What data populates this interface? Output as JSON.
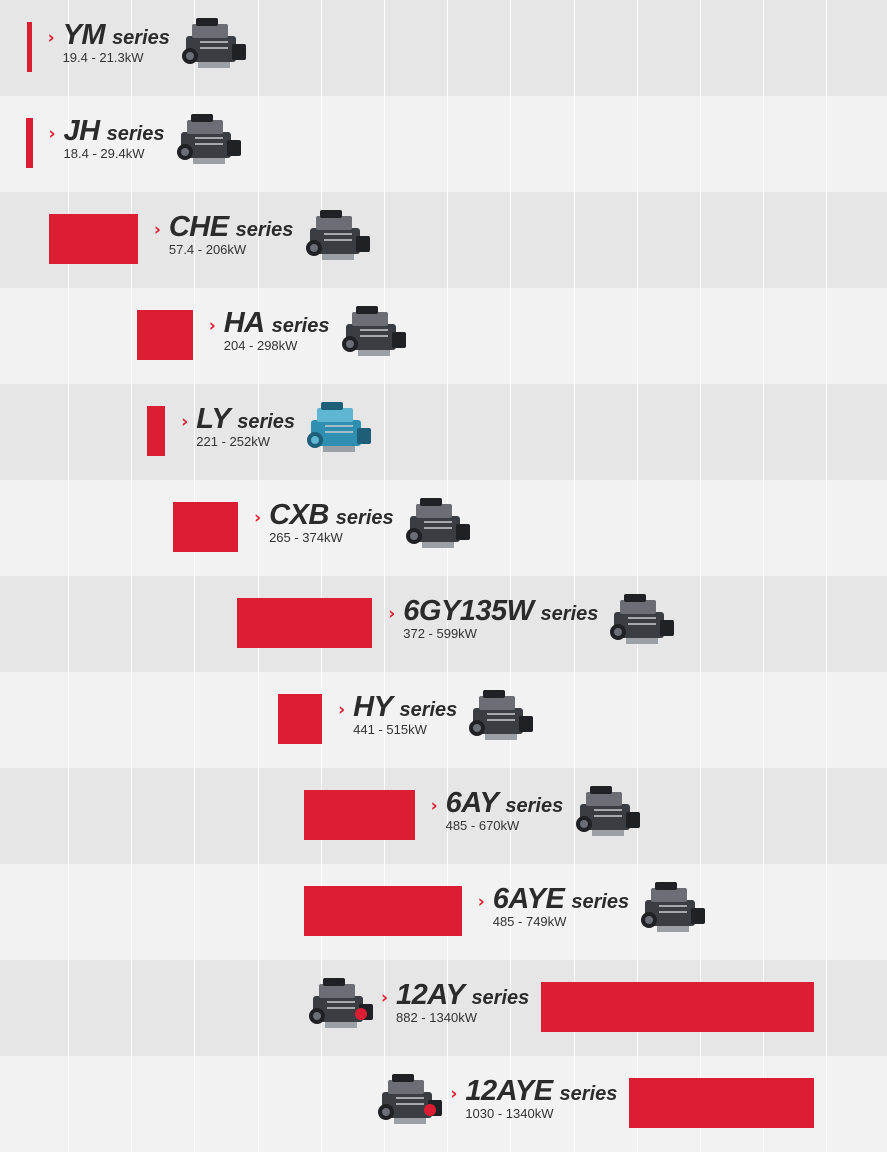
{
  "chart_data": {
    "type": "bar",
    "orientation": "horizontal-range",
    "unit": "kW",
    "series_suffix": "series",
    "categories": [
      "YM",
      "JH",
      "CHE",
      "HA",
      "LY",
      "CXB",
      "6GY135W",
      "HY",
      "6AY",
      "6AYE",
      "12AY",
      "12AYE"
    ],
    "ranges": [
      {
        "name": "YM",
        "range_label": "19.4 - 21.3kW",
        "min": 19.4,
        "max": 21.3
      },
      {
        "name": "JH",
        "range_label": "18.4 - 29.4kW",
        "min": 18.4,
        "max": 29.4
      },
      {
        "name": "CHE",
        "range_label": "57.4 - 206kW",
        "min": 57.4,
        "max": 206
      },
      {
        "name": "HA",
        "range_label": "204 - 298kW",
        "min": 204,
        "max": 298
      },
      {
        "name": "LY",
        "range_label": "221 - 252kW",
        "min": 221,
        "max": 252
      },
      {
        "name": "CXB",
        "range_label": "265 - 374kW",
        "min": 265,
        "max": 374
      },
      {
        "name": "6GY135W",
        "range_label": "372 - 599kW",
        "min": 372,
        "max": 599
      },
      {
        "name": "HY",
        "range_label": "441 - 515kW",
        "min": 441,
        "max": 515
      },
      {
        "name": "6AY",
        "range_label": "485 - 670kW",
        "min": 485,
        "max": 670
      },
      {
        "name": "6AYE",
        "range_label": "485 - 749kW",
        "min": 485,
        "max": 749
      },
      {
        "name": "12AY",
        "range_label": "882 - 1340kW",
        "min": 882,
        "max": 1340
      },
      {
        "name": "12AYE",
        "range_label": "1030 - 1340kW",
        "min": 1030,
        "max": 1340
      }
    ],
    "xlim": [
      0,
      1400
    ],
    "grid": true,
    "legend": "none"
  },
  "colors": {
    "bar": "#dc1e35",
    "band_dark": "#e6e6e6",
    "band_light": "#f2f2f2",
    "text": "#2b2b2b"
  },
  "icons": {
    "engine": "marine-engine-icon",
    "chevron": "chevron-right-icon"
  }
}
